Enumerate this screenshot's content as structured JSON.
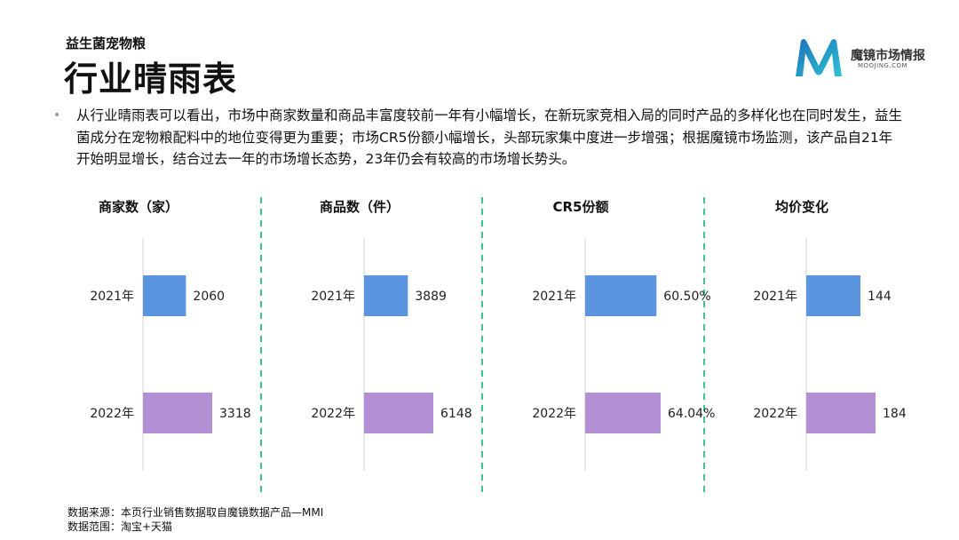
{
  "header": {
    "subtitle": "益生菌宠物粮",
    "title": "行业晴雨表"
  },
  "logo": {
    "name": "魔镜市场情报",
    "url": "MOOJING.COM",
    "colors": [
      "#1e6fb8",
      "#2ec4d6"
    ]
  },
  "description": "从行业晴雨表可以看出，市场中商家数量和商品丰富度较前一年有小幅增长，在新玩家竞相入局的同时产品的多样化也在同时发生，益生菌成分在宠物粮配料中的地位变得更为重要；市场CR5份额小幅增长，头部玩家集中度进一步增强；根据魔镜市场监测，该产品自21年开始明显增长，结合过去一年的市场增长态势，23年仍会有较高的市场增长势头。",
  "bullet": "•",
  "colors": {
    "year2021": "#5b95e0",
    "year2022": "#b38fd4",
    "divider": "#3cc48a",
    "axis": "#d0d0d0"
  },
  "chart_data": [
    {
      "type": "bar",
      "title": "商家数（家）",
      "categories": [
        "2021年",
        "2022年"
      ],
      "values": [
        2060,
        3318
      ],
      "labels": [
        "2060",
        "3318"
      ]
    },
    {
      "type": "bar",
      "title": "商品数（件）",
      "categories": [
        "2021年",
        "2022年"
      ],
      "values": [
        3889,
        6148
      ],
      "labels": [
        "3889",
        "6148"
      ]
    },
    {
      "type": "bar",
      "title": "CR5份额",
      "categories": [
        "2021年",
        "2022年"
      ],
      "values": [
        60.5,
        64.04
      ],
      "labels": [
        "60.50%",
        "64.04%"
      ]
    },
    {
      "type": "bar",
      "title": "均价变化",
      "categories": [
        "2021年",
        "2022年"
      ],
      "values": [
        144,
        184
      ],
      "labels": [
        "144",
        "184"
      ]
    }
  ],
  "footer": {
    "source": "数据来源：本页行业销售数据取自魔镜数据产品—MMI",
    "scope": "数据范围：淘宝+天猫"
  }
}
